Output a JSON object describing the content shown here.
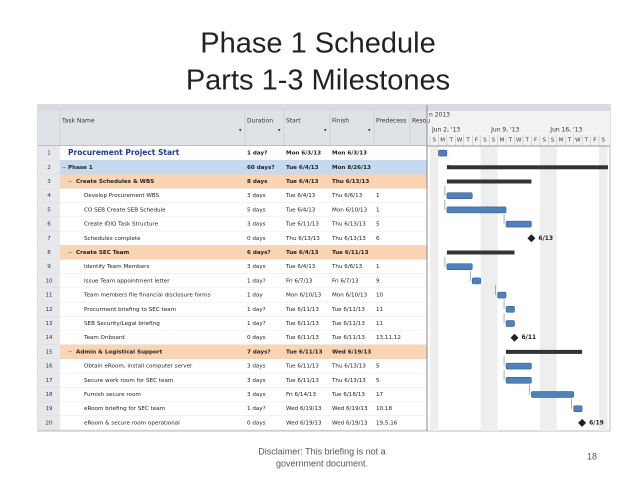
{
  "slide": {
    "title_lines": [
      "Phase 1 Schedule",
      "Parts 1-3 Milestones"
    ],
    "disclaimer_lines": [
      "Disclaimer: This briefing is not a",
      "government document."
    ],
    "page_number": "18"
  },
  "table": {
    "columns": [
      "Task Name",
      "Duration",
      "Start",
      "Finish",
      "Predecess",
      "Resou"
    ],
    "rows": [
      [
        "1",
        "Procurement Project Start",
        "1 day?",
        "Mon 6/3/13",
        "Mon 6/3/13",
        ""
      ],
      [
        "2",
        "Phase 1",
        "60 days?",
        "Tue 6/4/13",
        "Mon 8/26/13",
        ""
      ],
      [
        "3",
        "Create Schedules & WBS",
        "8 days",
        "Tue 6/4/13",
        "Thu 6/13/13",
        ""
      ],
      [
        "4",
        "Develop Procurement WBS",
        "3 days",
        "Tue 6/4/13",
        "Thu 6/6/13",
        "1"
      ],
      [
        "5",
        "CO SEB Create SEB Schedule",
        "5 days",
        "Tue 6/4/13",
        "Mon 6/10/13",
        "1"
      ],
      [
        "6",
        "Create IDIQ Task Structure",
        "3 days",
        "Tue 6/11/13",
        "Thu 6/13/13",
        "5"
      ],
      [
        "7",
        "Schedules complete",
        "0 days",
        "Thu 6/13/13",
        "Thu 6/13/13",
        "6"
      ],
      [
        "8",
        "Create SEC Team",
        "6 days?",
        "Tue 6/4/13",
        "Tue 6/11/13",
        ""
      ],
      [
        "9",
        "Identify Team Members",
        "3 days",
        "Tue 6/4/13",
        "Thu 6/6/13",
        "1"
      ],
      [
        "10",
        "Issue Team appointment letter",
        "1 day?",
        "Fri 6/7/13",
        "Fri 6/7/13",
        "9"
      ],
      [
        "11",
        "Team members file financial disclosure forms",
        "1 day",
        "Mon 6/10/13",
        "Mon 6/10/13",
        "10"
      ],
      [
        "12",
        "Procurment briefing to SEC team",
        "1 day?",
        "Tue 6/11/13",
        "Tue 6/11/13",
        "11"
      ],
      [
        "13",
        "SEB Security/Legal briefing",
        "1 day?",
        "Tue 6/11/13",
        "Tue 6/11/13",
        "11"
      ],
      [
        "14",
        "Team Onboard",
        "0 days",
        "Tue 6/11/13",
        "Tue 6/11/13",
        "13,11,12"
      ],
      [
        "15",
        "Admin & Logistical Support",
        "7 days?",
        "Tue 6/11/13",
        "Wed 6/19/13",
        ""
      ],
      [
        "16",
        "Obtain eRoom, install computer server",
        "3 days",
        "Tue 6/11/13",
        "Thu 6/13/13",
        "5"
      ],
      [
        "17",
        "Secure work room for SEC team",
        "3 days",
        "Tue 6/11/13",
        "Thu 6/13/13",
        "5"
      ],
      [
        "18",
        "Furnish secure room",
        "3 days",
        "Fri 6/14/13",
        "Tue 6/18/13",
        "17"
      ],
      [
        "19",
        "eRoom briefing for SEC team",
        "1 day?",
        "Wed 6/19/13",
        "Wed 6/19/13",
        "10,18"
      ],
      [
        "20",
        "eRoom & secure room operational",
        "0 days",
        "Wed 6/19/13",
        "Wed 6/19/13",
        "19,5,16"
      ]
    ]
  },
  "gantt": {
    "month_label": "n 2013",
    "weeks": [
      "Jun 2, '13",
      "Jun 9, '13",
      "Jun 16, '13"
    ],
    "days": [
      "S",
      "M",
      "T",
      "W",
      "T",
      "F",
      "S",
      "S",
      "M",
      "T",
      "W",
      "T",
      "F",
      "S",
      "S",
      "M",
      "T",
      "W",
      "T",
      "F",
      "S"
    ],
    "milestone_labels": [
      "6/13",
      "6/11",
      "6/19"
    ]
  }
}
